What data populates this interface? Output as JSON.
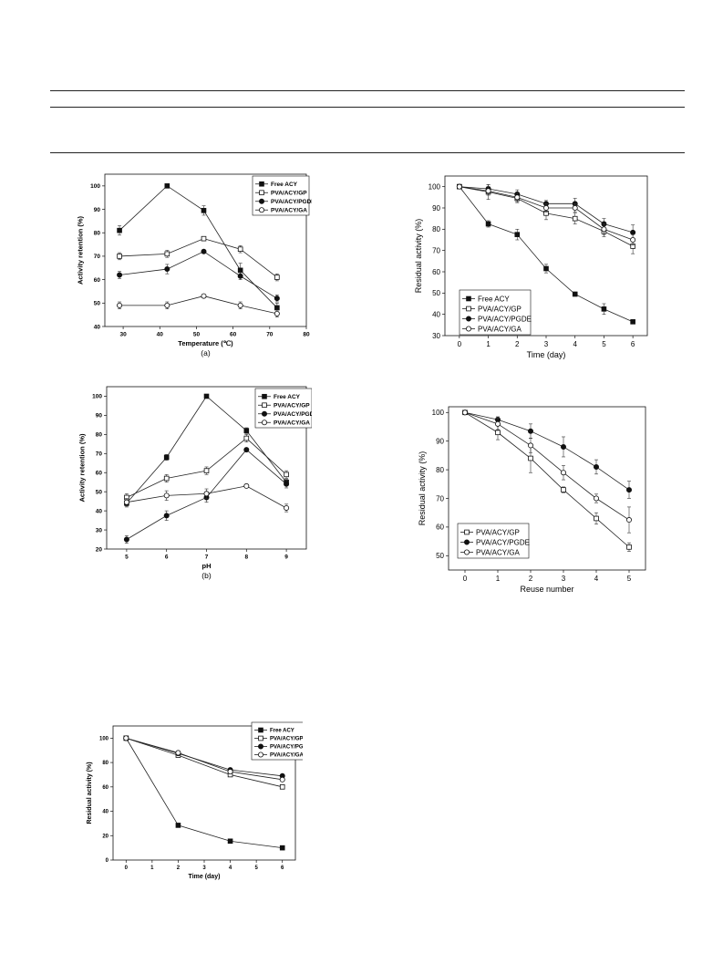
{
  "chart_data": [
    {
      "id": "a",
      "type": "line",
      "title": "",
      "panel_label": "(a)",
      "xlabel": "Temperature (℃)",
      "ylabel": "Activity retention (%)",
      "xlim": [
        25,
        80
      ],
      "ylim": [
        40,
        105
      ],
      "xticks": [
        30,
        40,
        50,
        60,
        70,
        80
      ],
      "yticks": [
        40,
        50,
        60,
        70,
        80,
        90,
        100
      ],
      "legend_position": "top-right",
      "x": [
        29,
        42,
        52,
        62,
        72
      ],
      "series": [
        {
          "name": "Free ACY",
          "marker": "square-filled",
          "values": [
            81,
            100,
            89.5,
            64,
            48
          ],
          "errors": [
            2,
            0,
            2,
            3,
            2
          ]
        },
        {
          "name": "PVA/ACY/GP",
          "marker": "square-open",
          "values": [
            70,
            71,
            77.5,
            73,
            61
          ],
          "errors": [
            1.5,
            1.5,
            0,
            1.5,
            1.5
          ]
        },
        {
          "name": "PVA/ACY/PGDE",
          "marker": "circle-filled",
          "values": [
            62,
            64.5,
            72,
            61.5,
            52
          ],
          "errors": [
            1.5,
            2,
            0,
            1.5,
            1.5
          ]
        },
        {
          "name": "PVA/ACY/GA",
          "marker": "circle-open",
          "values": [
            49,
            49,
            53,
            49,
            45.5
          ],
          "errors": [
            1.5,
            1.5,
            0,
            1.5,
            1.5
          ]
        }
      ]
    },
    {
      "id": "b",
      "type": "line",
      "title": "",
      "xlabel": "Time (day)",
      "ylabel": "Residual activity (%)",
      "xlim": [
        -0.5,
        6.5
      ],
      "ylim": [
        30,
        105
      ],
      "xticks": [
        0,
        1,
        2,
        3,
        4,
        5,
        6
      ],
      "yticks": [
        30,
        40,
        50,
        60,
        70,
        80,
        90,
        100
      ],
      "legend_position": "bottom-left",
      "x": [
        0,
        1,
        2,
        3,
        4,
        5,
        6
      ],
      "series": [
        {
          "name": "Free ACY",
          "marker": "square-filled",
          "values": [
            100,
            82.5,
            77.5,
            61.5,
            49.5,
            42.5,
            36.5
          ],
          "errors": [
            0,
            1.5,
            2.5,
            2,
            1,
            2.5,
            0
          ]
        },
        {
          "name": "PVA/ACY/GP",
          "marker": "square-open",
          "values": [
            100,
            97.5,
            94.5,
            87.5,
            85,
            79,
            72
          ],
          "errors": [
            0,
            3.5,
            2,
            3,
            2.5,
            2.5,
            3.5
          ]
        },
        {
          "name": "PVA/ACY/PGDE",
          "marker": "circle-filled",
          "values": [
            100,
            99,
            96.5,
            92,
            92,
            82.5,
            78.5
          ],
          "errors": [
            0,
            2,
            2,
            1.5,
            2.5,
            2.5,
            3.5
          ]
        },
        {
          "name": "PVA/ACY/GA",
          "marker": "circle-open",
          "values": [
            100,
            98,
            95,
            90,
            90,
            80,
            75
          ],
          "errors": [
            0,
            2,
            2,
            2,
            2,
            2.5,
            2.5
          ]
        }
      ]
    },
    {
      "id": "c",
      "type": "line",
      "title": "",
      "panel_label": "(b)",
      "xlabel": "pH",
      "ylabel": "Activity retention (%)",
      "xlim": [
        4.5,
        9.5
      ],
      "ylim": [
        20,
        105
      ],
      "xticks": [
        5,
        6,
        7,
        8,
        9
      ],
      "yticks": [
        20,
        30,
        40,
        50,
        60,
        70,
        80,
        90,
        100
      ],
      "legend_position": "top-right",
      "x": [
        5,
        6,
        7,
        8,
        9
      ],
      "series": [
        {
          "name": "Free ACY",
          "marker": "square-filled",
          "values": [
            44,
            68,
            100,
            82,
            55
          ],
          "errors": [
            2,
            1.5,
            0,
            1.5,
            1.5
          ]
        },
        {
          "name": "PVA/ACY/GP",
          "marker": "square-open",
          "values": [
            47,
            57,
            61,
            78,
            59
          ],
          "errors": [
            2,
            2,
            2,
            2,
            2
          ]
        },
        {
          "name": "PVA/ACY/PGDE",
          "marker": "circle-filled",
          "values": [
            25,
            37.5,
            47,
            72,
            54
          ],
          "errors": [
            2,
            2.5,
            2.5,
            0,
            2
          ]
        },
        {
          "name": "PVA/ACY/GA",
          "marker": "circle-open",
          "values": [
            44.5,
            48,
            49,
            53,
            41.5
          ],
          "errors": [
            2,
            2.5,
            2.5,
            0,
            2
          ]
        }
      ]
    },
    {
      "id": "d",
      "type": "line",
      "title": "",
      "xlabel": "Reuse number",
      "ylabel": "Residual activity (%)",
      "xlim": [
        -0.5,
        5.5
      ],
      "ylim": [
        45,
        102
      ],
      "xticks": [
        0,
        1,
        2,
        3,
        4,
        5
      ],
      "yticks": [
        50,
        60,
        70,
        80,
        90,
        100
      ],
      "legend_position": "bottom-left",
      "x": [
        0,
        1,
        2,
        3,
        4,
        5
      ],
      "series": [
        {
          "name": "PVA/ACY/GP",
          "marker": "square-open",
          "values": [
            100,
            93,
            84,
            73,
            63,
            53
          ],
          "errors": [
            0,
            2.5,
            5,
            1,
            2,
            1.5
          ]
        },
        {
          "name": "PVA/ACY/PGDE",
          "marker": "circle-filled",
          "values": [
            100,
            97.5,
            93.5,
            88,
            81,
            73
          ],
          "errors": [
            0,
            1,
            2.5,
            3.5,
            2.5,
            3
          ]
        },
        {
          "name": "PVA/ACY/GA",
          "marker": "circle-open",
          "values": [
            100,
            96,
            88.5,
            79,
            70,
            62.5
          ],
          "errors": [
            0,
            2,
            2.5,
            2.5,
            1.5,
            4.5
          ]
        }
      ]
    },
    {
      "id": "e",
      "type": "line",
      "title": "",
      "xlabel": "Time (day)",
      "ylabel": "Residual activity (%)",
      "xlim": [
        -0.5,
        6.5
      ],
      "ylim": [
        0,
        110
      ],
      "xticks": [
        0,
        1,
        2,
        3,
        4,
        5,
        6
      ],
      "yticks": [
        0,
        20,
        40,
        60,
        80,
        100
      ],
      "legend_position": "top-right",
      "x": [
        0,
        2,
        4,
        6
      ],
      "series": [
        {
          "name": "Free ACY",
          "marker": "square-filled",
          "values": [
            100,
            28.5,
            15.5,
            10
          ],
          "errors": [
            0,
            0,
            0,
            0
          ]
        },
        {
          "name": "PVA/ACY/GP",
          "marker": "square-open",
          "values": [
            100,
            86,
            70,
            60
          ],
          "errors": [
            0,
            0,
            0,
            0
          ]
        },
        {
          "name": "PVA/ACY/PGDE",
          "marker": "circle-filled",
          "values": [
            100,
            87.5,
            74,
            69
          ],
          "errors": [
            0,
            0,
            0,
            0
          ]
        },
        {
          "name": "PVA/ACY/GA",
          "marker": "circle-open",
          "values": [
            100,
            88,
            72.5,
            66
          ],
          "errors": [
            0,
            0,
            0,
            0
          ]
        }
      ]
    }
  ]
}
